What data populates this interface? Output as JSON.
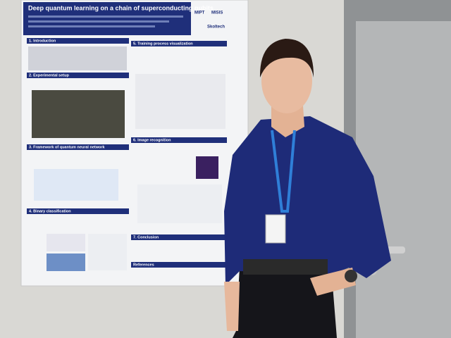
{
  "poster": {
    "title": "Deep quantum learning on a chain of superconducting qubits",
    "logos": [
      "MIPT",
      "MISIS",
      "Skoltech"
    ],
    "sections": [
      "1. Introduction",
      "2. Experimental setup",
      "3. Framework of quantum neural network",
      "4. Binary classification",
      "5. Training process visualization",
      "6. Image recognition",
      "7. Conclusion",
      "References"
    ]
  }
}
